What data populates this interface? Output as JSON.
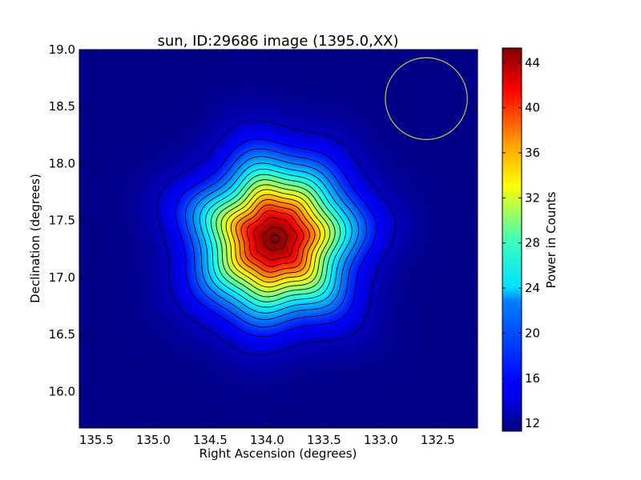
{
  "chart_data": {
    "type": "heatmap",
    "title": "sun, ID:29686 image (1395.0,XX)",
    "xlabel": "Right Ascension (degrees)",
    "ylabel": "Declination (degrees)",
    "colorbar_label": "Power in Counts",
    "colormap": "jet",
    "x_reversed": true,
    "xlim": [
      135.65,
      132.15
    ],
    "ylim": [
      15.68,
      19.0
    ],
    "x_ticks": [
      135.5,
      135.0,
      134.5,
      134.0,
      133.5,
      133.0,
      132.5
    ],
    "x_tick_labels": [
      "135.5",
      "135.0",
      "134.5",
      "134.0",
      "133.5",
      "133.0",
      "132.5"
    ],
    "y_ticks": [
      16.0,
      16.5,
      17.0,
      17.5,
      18.0,
      18.5,
      19.0
    ],
    "y_tick_labels": [
      "16.0",
      "16.5",
      "17.0",
      "17.5",
      "18.0",
      "18.5",
      "19.0"
    ],
    "colorbar_range": [
      11.3,
      45.3
    ],
    "colorbar_ticks": [
      12,
      16,
      20,
      24,
      28,
      32,
      36,
      40,
      44
    ],
    "colorbar_tick_labels": [
      "12",
      "16",
      "20",
      "24",
      "28",
      "32",
      "36",
      "40",
      "44"
    ],
    "source": {
      "ra": 133.93,
      "dec": 17.34,
      "peak": 45.0,
      "background": 11.6
    },
    "contour_levels": [
      13.5,
      16,
      18,
      20,
      22,
      24,
      26,
      28,
      30,
      32,
      34,
      36,
      38,
      40,
      42,
      44
    ],
    "beam_circle": {
      "ra": 132.6,
      "dec": 18.57,
      "radius_deg": 0.36,
      "color": "#cccc33"
    },
    "marker": {
      "ra": 133.93,
      "dec": 17.34,
      "shape": "circle"
    }
  }
}
